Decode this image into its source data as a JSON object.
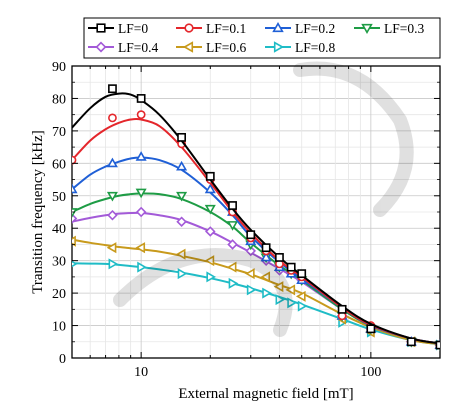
{
  "chart_data": {
    "type": "line",
    "xlabel": "External magnetic field [mT]",
    "ylabel": "Transition frequency [kHz]",
    "xscale": "log",
    "xlim": [
      5,
      200
    ],
    "ylim": [
      0,
      90
    ],
    "ytick_labels": [
      "0",
      "10",
      "20",
      "30",
      "40",
      "50",
      "60",
      "70",
      "80",
      "90"
    ],
    "xtick_labels": [
      "10",
      "100"
    ],
    "grid": true,
    "legend_position": "top",
    "series": [
      {
        "name": "LF=0",
        "color": "#000000",
        "marker": "square",
        "points": [
          [
            7.5,
            83
          ],
          [
            10,
            80
          ],
          [
            15,
            68
          ],
          [
            20,
            56
          ],
          [
            25,
            47
          ],
          [
            30,
            38
          ],
          [
            35,
            34
          ],
          [
            40,
            31
          ],
          [
            45,
            28
          ],
          [
            50,
            26
          ],
          [
            75,
            15
          ],
          [
            100,
            9
          ],
          [
            150,
            5
          ],
          [
            200,
            4
          ]
        ],
        "curve": [
          [
            5,
            71
          ],
          [
            6,
            77
          ],
          [
            7,
            80.5
          ],
          [
            8,
            81.5
          ],
          [
            9,
            81.2
          ],
          [
            10,
            79.5
          ],
          [
            12,
            75
          ],
          [
            15,
            67
          ],
          [
            20,
            55
          ],
          [
            25,
            46
          ],
          [
            30,
            39.5
          ],
          [
            40,
            31
          ],
          [
            50,
            25.5
          ],
          [
            75,
            16
          ],
          [
            100,
            10.5
          ],
          [
            150,
            6
          ],
          [
            200,
            4.5
          ]
        ]
      },
      {
        "name": "LF=0.1",
        "color": "#e4262b",
        "marker": "circle",
        "points": [
          [
            5,
            61
          ],
          [
            7.5,
            74
          ],
          [
            10,
            75
          ],
          [
            15,
            66
          ],
          [
            20,
            55
          ],
          [
            25,
            45
          ],
          [
            30,
            37
          ],
          [
            35,
            33
          ],
          [
            40,
            29
          ],
          [
            45,
            27
          ],
          [
            50,
            25
          ],
          [
            75,
            13
          ],
          [
            100,
            10
          ],
          [
            150,
            5
          ],
          [
            200,
            4
          ]
        ],
        "curve": [
          [
            5,
            61
          ],
          [
            6,
            67
          ],
          [
            7,
            70.5
          ],
          [
            8,
            72.5
          ],
          [
            9,
            73.5
          ],
          [
            10,
            73.5
          ],
          [
            12,
            71.5
          ],
          [
            15,
            65
          ],
          [
            20,
            54
          ],
          [
            25,
            45
          ],
          [
            30,
            38.5
          ],
          [
            40,
            30
          ],
          [
            50,
            25
          ],
          [
            75,
            15.5
          ],
          [
            100,
            10.2
          ],
          [
            150,
            6
          ],
          [
            200,
            4.5
          ]
        ]
      },
      {
        "name": "LF=0.2",
        "color": "#1f5fd6",
        "marker": "triangle-up",
        "points": [
          [
            5,
            52
          ],
          [
            7.5,
            60
          ],
          [
            10,
            62
          ],
          [
            15,
            59
          ],
          [
            20,
            52
          ],
          [
            25,
            45
          ],
          [
            30,
            36
          ],
          [
            35,
            31
          ],
          [
            40,
            28
          ],
          [
            45,
            26
          ],
          [
            50,
            24
          ],
          [
            75,
            13
          ],
          [
            100,
            9
          ],
          [
            150,
            5
          ],
          [
            200,
            4
          ]
        ],
        "curve": [
          [
            5,
            52
          ],
          [
            6,
            56.5
          ],
          [
            7,
            59
          ],
          [
            8,
            60.5
          ],
          [
            9,
            61.5
          ],
          [
            10,
            61.8
          ],
          [
            12,
            61
          ],
          [
            15,
            58
          ],
          [
            20,
            51
          ],
          [
            25,
            44
          ],
          [
            30,
            37.5
          ],
          [
            40,
            29.5
          ],
          [
            50,
            24.5
          ],
          [
            75,
            15.5
          ],
          [
            100,
            10
          ],
          [
            150,
            6
          ],
          [
            200,
            4.5
          ]
        ]
      },
      {
        "name": "LF=0.3",
        "color": "#1e9c45",
        "marker": "triangle-down",
        "points": [
          [
            5,
            45
          ],
          [
            7.5,
            50
          ],
          [
            10,
            51
          ],
          [
            15,
            50
          ],
          [
            20,
            46
          ],
          [
            25,
            41
          ],
          [
            30,
            35
          ],
          [
            35,
            31
          ],
          [
            40,
            28
          ],
          [
            45,
            26
          ],
          [
            50,
            24
          ],
          [
            75,
            13
          ],
          [
            100,
            9
          ],
          [
            150,
            5
          ],
          [
            200,
            4
          ]
        ],
        "curve": [
          [
            5,
            45
          ],
          [
            6,
            47.5
          ],
          [
            7,
            49
          ],
          [
            8,
            50
          ],
          [
            9,
            50.5
          ],
          [
            10,
            50.7
          ],
          [
            12,
            50.5
          ],
          [
            15,
            49
          ],
          [
            20,
            45
          ],
          [
            25,
            40.5
          ],
          [
            30,
            35.5
          ],
          [
            40,
            28.5
          ],
          [
            50,
            24
          ],
          [
            75,
            15
          ],
          [
            100,
            10
          ],
          [
            150,
            6
          ],
          [
            200,
            4.5
          ]
        ]
      },
      {
        "name": "LF=0.4",
        "color": "#a35ad8",
        "marker": "diamond",
        "points": [
          [
            5,
            43
          ],
          [
            7.5,
            44
          ],
          [
            10,
            45
          ],
          [
            15,
            42
          ],
          [
            20,
            39
          ],
          [
            25,
            35
          ],
          [
            30,
            33
          ],
          [
            35,
            30
          ],
          [
            40,
            27
          ],
          [
            45,
            26
          ],
          [
            50,
            24
          ],
          [
            75,
            13
          ],
          [
            100,
            9
          ],
          [
            150,
            5
          ],
          [
            200,
            4
          ]
        ],
        "curve": [
          [
            5,
            42
          ],
          [
            6,
            43.2
          ],
          [
            7,
            44
          ],
          [
            8,
            44.5
          ],
          [
            10,
            44.7
          ],
          [
            12,
            44
          ],
          [
            15,
            42.5
          ],
          [
            20,
            39
          ],
          [
            25,
            35.5
          ],
          [
            30,
            32.5
          ],
          [
            40,
            27.5
          ],
          [
            50,
            23.5
          ],
          [
            75,
            15
          ],
          [
            100,
            10
          ],
          [
            150,
            6
          ],
          [
            200,
            4.5
          ]
        ]
      },
      {
        "name": "LF=0.6",
        "color": "#c89a1c",
        "marker": "triangle-left",
        "points": [
          [
            5,
            36
          ],
          [
            7.5,
            34
          ],
          [
            10,
            34
          ],
          [
            15,
            32
          ],
          [
            20,
            30
          ],
          [
            25,
            28
          ],
          [
            30,
            26
          ],
          [
            35,
            25
          ],
          [
            40,
            22
          ],
          [
            45,
            21
          ],
          [
            50,
            19
          ],
          [
            75,
            12
          ],
          [
            100,
            8
          ],
          [
            150,
            5
          ],
          [
            200,
            4
          ]
        ],
        "curve": [
          [
            5,
            36.5
          ],
          [
            6,
            35.5
          ],
          [
            7,
            34.8
          ],
          [
            8,
            34.2
          ],
          [
            10,
            33.5
          ],
          [
            12,
            32.8
          ],
          [
            15,
            31.5
          ],
          [
            20,
            29.5
          ],
          [
            25,
            27.5
          ],
          [
            30,
            25.8
          ],
          [
            40,
            22.5
          ],
          [
            50,
            20
          ],
          [
            75,
            13.5
          ],
          [
            100,
            9.5
          ],
          [
            150,
            5.5
          ],
          [
            200,
            4.3
          ]
        ]
      },
      {
        "name": "LF=0.8",
        "color": "#1fbcc6",
        "marker": "triangle-right",
        "points": [
          [
            5,
            29
          ],
          [
            7.5,
            29
          ],
          [
            10,
            28
          ],
          [
            15,
            26
          ],
          [
            20,
            25
          ],
          [
            25,
            23
          ],
          [
            30,
            21
          ],
          [
            35,
            20
          ],
          [
            40,
            18
          ],
          [
            45,
            17
          ],
          [
            50,
            16
          ],
          [
            75,
            11
          ],
          [
            100,
            8
          ],
          [
            150,
            5
          ],
          [
            200,
            4
          ]
        ],
        "curve": [
          [
            5,
            29.2
          ],
          [
            6,
            29.1
          ],
          [
            7,
            29
          ],
          [
            8,
            28.7
          ],
          [
            10,
            28
          ],
          [
            12,
            27.3
          ],
          [
            15,
            26.3
          ],
          [
            20,
            24.6
          ],
          [
            25,
            23
          ],
          [
            30,
            21.5
          ],
          [
            40,
            18.8
          ],
          [
            50,
            16.5
          ],
          [
            75,
            12
          ],
          [
            100,
            8.8
          ],
          [
            150,
            5.5
          ],
          [
            200,
            4.2
          ]
        ]
      }
    ]
  }
}
